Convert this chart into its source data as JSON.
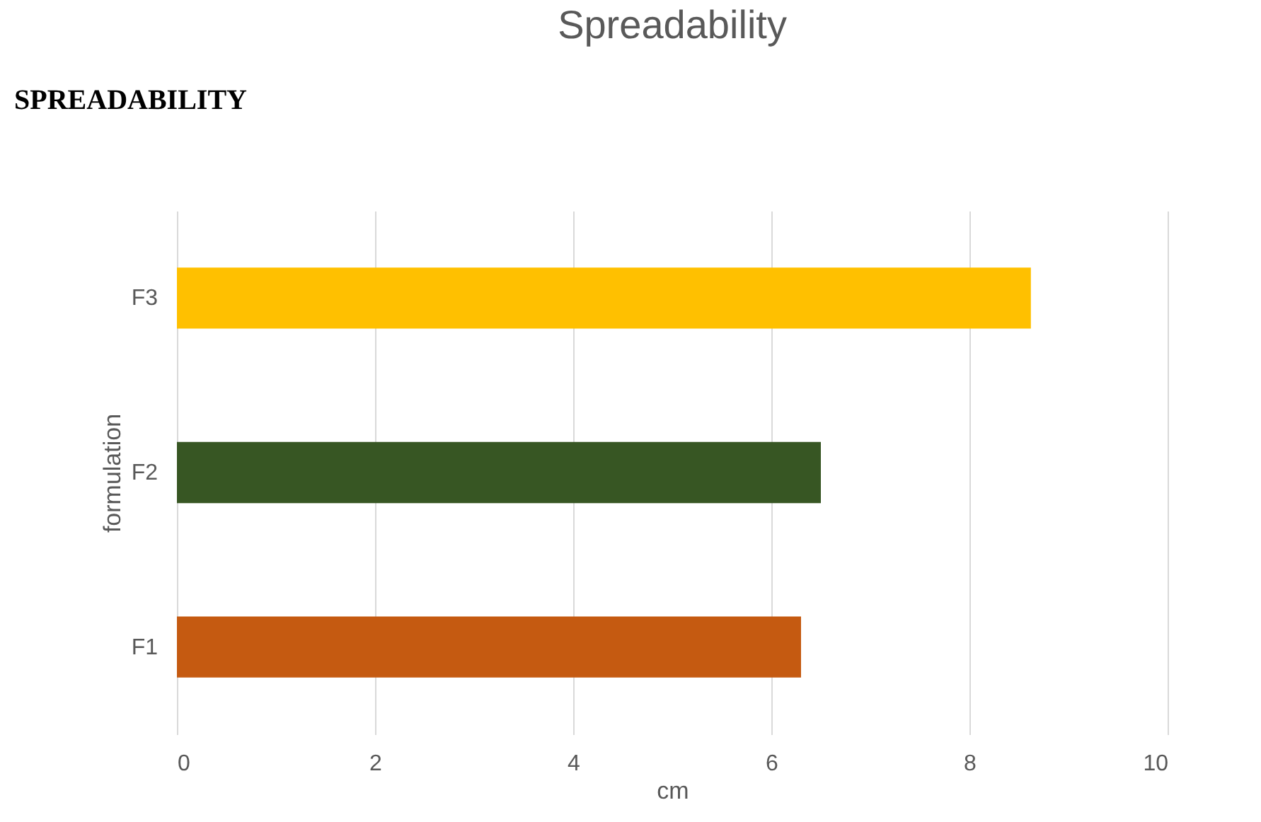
{
  "chart_data": {
    "type": "bar",
    "orientation": "horizontal",
    "title": "Spreadability",
    "xlabel": "cm",
    "ylabel": "formulation",
    "categories": [
      "F3",
      "F2",
      "F1"
    ],
    "values": [
      8.62,
      6.5,
      6.3
    ],
    "colors": [
      "#ffc000",
      "#375623",
      "#c55a11"
    ],
    "xlim": [
      0,
      10
    ],
    "xticks": [
      0,
      2,
      4,
      6,
      8,
      10
    ],
    "grid": "x",
    "annotations": [
      "SPREADABILITY"
    ]
  }
}
